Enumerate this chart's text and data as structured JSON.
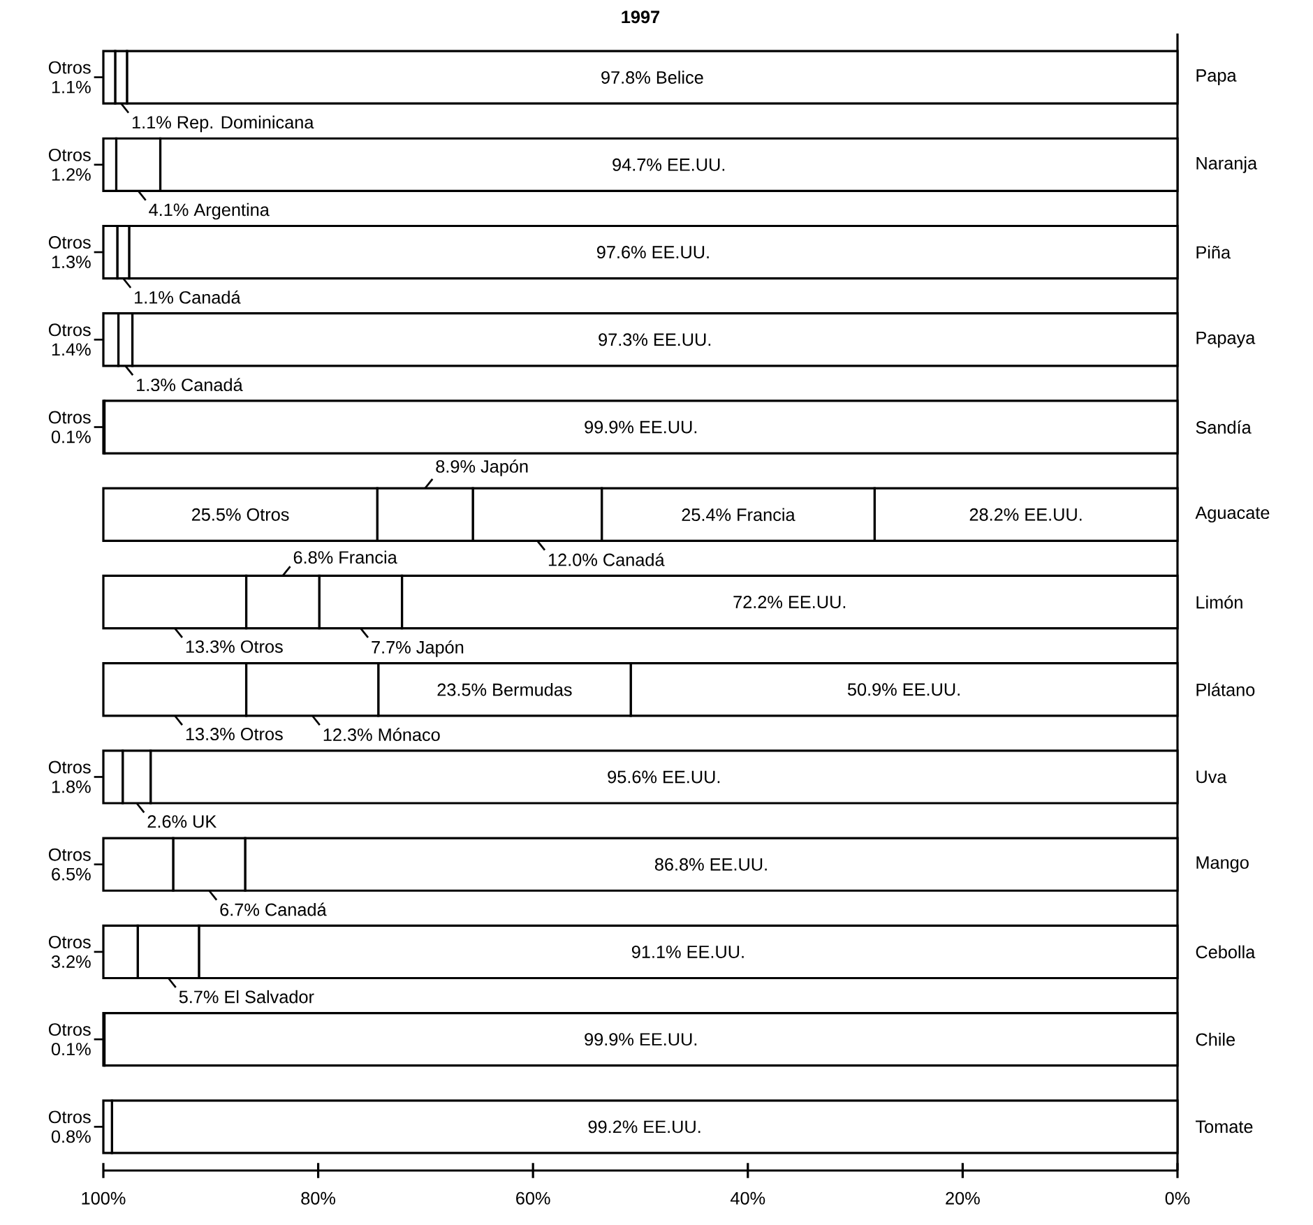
{
  "chart_data": {
    "type": "bar",
    "orientation": "horizontal",
    "stacked": true,
    "title": "1997",
    "categories": [
      "Papa",
      "Naranja",
      "Piña",
      "Papaya",
      "Sandía",
      "Aguacate",
      "Limón",
      "Plátano",
      "Uva",
      "Mango",
      "Cebolla",
      "Chile",
      "Tomate"
    ],
    "xlim": [
      100,
      0
    ],
    "xticks": [
      {
        "value": 100,
        "label": "100%"
      },
      {
        "value": 80,
        "label": "80%"
      },
      {
        "value": 60,
        "label": "60%"
      },
      {
        "value": 40,
        "label": "40%"
      },
      {
        "value": 20,
        "label": "20%"
      },
      {
        "value": 0,
        "label": "0%"
      }
    ],
    "series": [
      {
        "color": "#ffffff",
        "values": [
          97.8,
          94.7,
          97.6,
          97.3,
          99.9,
          28.2,
          72.2,
          50.9,
          95.6,
          86.8,
          91.1,
          99.9,
          99.2
        ],
        "value_labels": [
          "97.8% Belice",
          "94.7% EE.UU.",
          "97.6% EE.UU.",
          "97.3% EE.UU.",
          "99.9% EE.UU.",
          "28.2% EE.UU.",
          "72.2% EE.UU.",
          "50.9% EE.UU.",
          "95.6% EE.UU.",
          "86.8% EE.UU.",
          "91.1% EE.UU.",
          "99.9% EE.UU.",
          "99.2% EE.UU."
        ]
      },
      {
        "color": "#ffffff",
        "values": [
          1.1,
          4.1,
          1.1,
          1.3,
          0.1,
          25.4,
          7.7,
          23.5,
          2.6,
          6.7,
          5.7,
          0.1,
          0.8
        ],
        "value_labels": [
          "1.1% Rep. Dominicana",
          "4.1% Argentina",
          "1.1% Canadá",
          "1.3% Canadá",
          "Otros 0.1%",
          "25.4% Francia",
          "7.7% Japón",
          "23.5% Bermudas",
          "2.6% UK",
          "6.7% Canadá",
          "5.7% El Salvador",
          "Otros 0.1%",
          "Otros 0.8%"
        ]
      },
      {
        "color": "#ffffff",
        "values": [
          1.1,
          1.2,
          1.3,
          1.4,
          null,
          12.0,
          6.8,
          12.3,
          1.8,
          6.5,
          3.2,
          null,
          null
        ],
        "value_labels": [
          "Otros 1.1%",
          "Otros 1.2%",
          "Otros 1.3%",
          "Otros 1.4%",
          null,
          "12.0% Canadá",
          "6.8% Francia",
          "12.3% Mónaco",
          "Otros 1.8%",
          "Otros 6.5%",
          "Otros 3.2%",
          null,
          null
        ]
      },
      {
        "color": "#ffffff",
        "values": [
          null,
          null,
          null,
          null,
          null,
          8.9,
          13.3,
          13.3,
          null,
          null,
          null,
          null,
          null
        ],
        "value_labels": [
          null,
          null,
          null,
          null,
          null,
          "8.9% Japón",
          "13.3% Otros",
          "13.3% Otros",
          null,
          null,
          null,
          null,
          null
        ]
      },
      {
        "color": "#ffffff",
        "values": [
          null,
          null,
          null,
          null,
          null,
          25.5,
          null,
          null,
          null,
          null,
          null,
          null,
          null
        ],
        "value_labels": [
          null,
          null,
          null,
          null,
          null,
          "25.5% Otros",
          null,
          null,
          null,
          null,
          null,
          null,
          null
        ]
      }
    ]
  }
}
